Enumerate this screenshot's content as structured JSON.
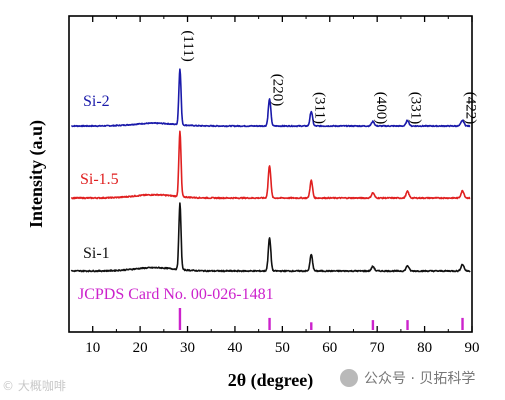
{
  "chart_data": {
    "type": "line",
    "xlabel": "2θ (degree)",
    "ylabel": "Intensity (a.u)",
    "xlim": [
      5,
      90
    ],
    "xticks": [
      10,
      20,
      30,
      40,
      50,
      60,
      70,
      80,
      90
    ],
    "yticks": false,
    "grid": false,
    "peaks": [
      {
        "label": "(111)",
        "x": 28.4
      },
      {
        "label": "(220)",
        "x": 47.3
      },
      {
        "label": "(311)",
        "x": 56.1
      },
      {
        "label": "(400)",
        "x": 69.1
      },
      {
        "label": "(331)",
        "x": 76.4
      },
      {
        "label": "(422)",
        "x": 88.0
      }
    ],
    "series": [
      {
        "name": "Si-2",
        "color": "#1a1aaa",
        "relative_intensities": [
          1.0,
          0.48,
          0.26,
          0.08,
          0.1,
          0.1
        ]
      },
      {
        "name": "Si-1.5",
        "color": "#e02020",
        "relative_intensities": [
          1.0,
          0.5,
          0.27,
          0.08,
          0.1,
          0.11
        ]
      },
      {
        "name": "Si-1",
        "color": "#111111",
        "relative_intensities": [
          1.0,
          0.5,
          0.25,
          0.07,
          0.08,
          0.1
        ]
      }
    ],
    "reference": {
      "name": "JCPDS Card No. 00-026-1481",
      "color": "#cc22cc",
      "positions": [
        28.4,
        47.3,
        56.1,
        69.1,
        76.4,
        88.0
      ],
      "relative_intensities": [
        1.0,
        0.55,
        0.35,
        0.45,
        0.45,
        0.55
      ]
    }
  },
  "watermarks": {
    "left": "© 大概咖啡",
    "right": "公众号 · 贝拓科学"
  }
}
